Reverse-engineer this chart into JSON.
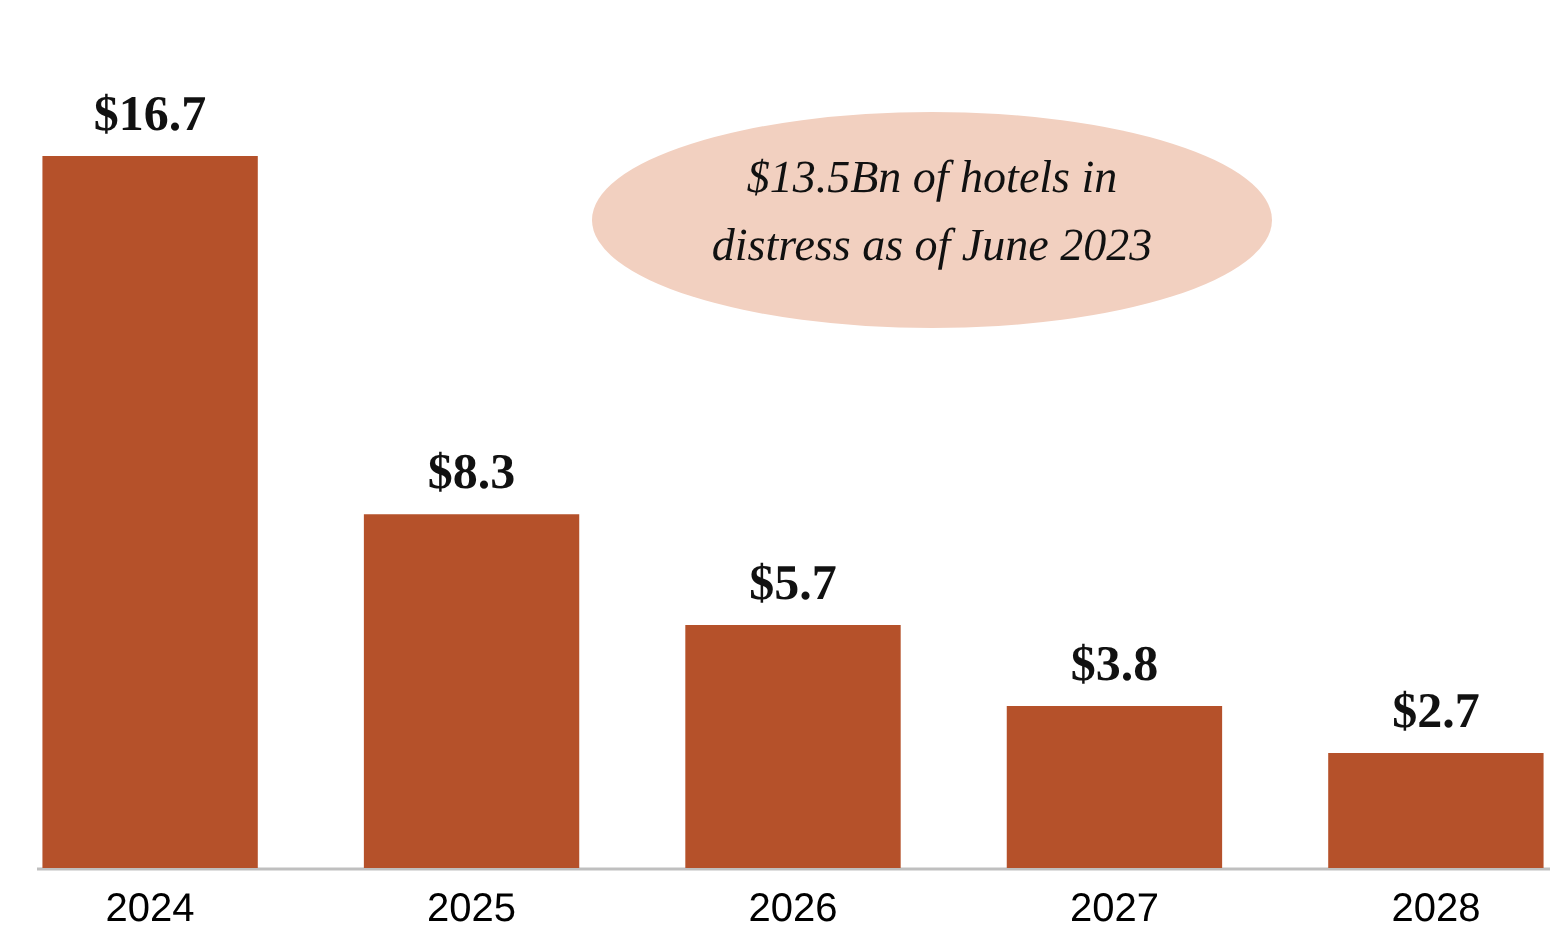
{
  "chart_data": {
    "type": "bar",
    "categories": [
      "2024",
      "2025",
      "2026",
      "2027",
      "2028"
    ],
    "values": [
      16.7,
      8.3,
      5.7,
      3.8,
      2.7
    ],
    "value_labels": [
      "$16.7",
      "$8.3",
      "$5.7",
      "$3.8",
      "$2.7"
    ],
    "color": "#b5512a",
    "grid": false,
    "annotations": [
      "$13.5Bn of hotels in distress as of June 2023"
    ]
  }
}
